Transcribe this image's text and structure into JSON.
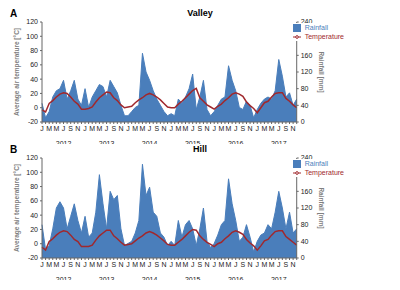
{
  "chart_data": [
    {
      "type": "area_line",
      "title": "Valley",
      "annotations": [
        "A"
      ],
      "ylabel": "Average air temperature [°C]",
      "y2label": "Rainfall [mm]",
      "categories": [
        "J",
        null,
        "M",
        null,
        "M",
        null,
        "J",
        null,
        "S",
        null,
        "N",
        null,
        "J",
        null,
        "M",
        null,
        "M",
        null,
        "J",
        null,
        "S",
        null,
        "N",
        null,
        "J",
        null,
        "M",
        null,
        "M",
        null,
        "J",
        null,
        "S",
        null,
        "N",
        null,
        "J",
        null,
        "M",
        null,
        "M",
        null,
        "J",
        null,
        "S",
        null,
        "N",
        null,
        "J",
        null,
        "M",
        null,
        "M",
        null,
        "J",
        null,
        "S",
        null,
        "N",
        null,
        "J",
        null,
        "M",
        null,
        "M",
        null,
        "J",
        null,
        "S",
        null,
        "N",
        null
      ],
      "x_groups": [
        "2012",
        "2013",
        "2014",
        "2015",
        "2016",
        "2017"
      ],
      "ylim": [
        -20,
        120
      ],
      "yticks": [
        -20,
        0,
        20,
        40,
        60,
        80,
        100,
        120
      ],
      "y2lim": [
        0,
        240
      ],
      "y2ticks": [
        0,
        40,
        80,
        120,
        160,
        200,
        240
      ],
      "grid": false,
      "legend": "upper right",
      "series": [
        {
          "name": "Rainfall",
          "type": "area",
          "axis": "y2",
          "color": "#4a7ebb",
          "values": [
            45,
            10,
            25,
            60,
            75,
            80,
            100,
            55,
            75,
            100,
            55,
            40,
            80,
            35,
            60,
            75,
            90,
            85,
            60,
            100,
            85,
            70,
            40,
            15,
            15,
            25,
            35,
            40,
            165,
            120,
            100,
            75,
            55,
            40,
            25,
            15,
            20,
            15,
            55,
            45,
            60,
            80,
            115,
            30,
            60,
            100,
            30,
            15,
            25,
            40,
            55,
            60,
            135,
            100,
            75,
            35,
            30,
            50,
            40,
            10,
            30,
            45,
            55,
            60,
            55,
            75,
            150,
            110,
            60,
            70,
            40,
            55
          ]
        },
        {
          "name": "Temperature",
          "type": "line",
          "color": "#a0282d",
          "values": [
            -3,
            -6,
            6,
            10,
            15,
            19,
            21,
            20,
            15,
            9,
            5,
            -2,
            -2,
            -1,
            1,
            8,
            14,
            18,
            22,
            21,
            14,
            10,
            4,
            0,
            1,
            2,
            7,
            11,
            14,
            18,
            20,
            18,
            15,
            11,
            6,
            1,
            0,
            0,
            5,
            9,
            14,
            19,
            24,
            27,
            14,
            9,
            4,
            1,
            -2,
            2,
            5,
            10,
            14,
            19,
            21,
            19,
            16,
            8,
            3,
            -1,
            -7,
            0,
            7,
            9,
            15,
            20,
            21,
            21,
            13,
            9,
            4,
            0
          ]
        }
      ]
    },
    {
      "type": "area_line",
      "title": "Hill",
      "annotations": [
        "B"
      ],
      "ylabel": "Average air temperature [°C]",
      "y2label": "Rainfall [mm]",
      "categories": [
        "J",
        null,
        "M",
        null,
        "M",
        null,
        "J",
        null,
        "S",
        null,
        "N",
        null,
        "J",
        null,
        "M",
        null,
        "M",
        null,
        "J",
        null,
        "S",
        null,
        "N",
        null,
        "J",
        null,
        "M",
        null,
        "M",
        null,
        "J",
        null,
        "S",
        null,
        "N",
        null,
        "J",
        null,
        "M",
        null,
        "M",
        null,
        "J",
        null,
        "S",
        null,
        "N",
        null,
        "J",
        null,
        "M",
        null,
        "M",
        null,
        "J",
        null,
        "S",
        null,
        "N",
        null,
        "J",
        null,
        "M",
        null,
        "M",
        null,
        "J",
        null,
        "S",
        null,
        "N",
        null
      ],
      "x_groups": [
        "2012",
        "2013",
        "2014",
        "2015",
        "2016",
        "2017"
      ],
      "ylim": [
        -20,
        120
      ],
      "yticks": [
        -20,
        0,
        20,
        40,
        60,
        80,
        100,
        120
      ],
      "y2lim": [
        0,
        240
      ],
      "y2ticks": [
        0,
        40,
        80,
        120,
        160,
        200,
        240
      ],
      "grid": false,
      "legend": "upper right",
      "series": [
        {
          "name": "Rainfall",
          "type": "area",
          "axis": "y2",
          "color": "#4a7ebb",
          "values": [
            80,
            20,
            30,
            70,
            120,
            135,
            120,
            70,
            100,
            130,
            90,
            60,
            100,
            50,
            60,
            110,
            200,
            130,
            70,
            160,
            140,
            150,
            70,
            30,
            35,
            40,
            60,
            90,
            225,
            150,
            170,
            110,
            100,
            60,
            50,
            30,
            40,
            30,
            90,
            50,
            80,
            90,
            70,
            30,
            70,
            120,
            40,
            25,
            35,
            55,
            80,
            90,
            190,
            130,
            90,
            40,
            50,
            80,
            50,
            15,
            40,
            55,
            60,
            80,
            70,
            110,
            160,
            120,
            70,
            110,
            60,
            70
          ]
        },
        {
          "name": "Temperature",
          "type": "line",
          "color": "#a0282d",
          "values": [
            -5,
            -9,
            3,
            7,
            12,
            16,
            18,
            17,
            12,
            6,
            3,
            -4,
            -4,
            -4,
            -2,
            5,
            11,
            15,
            19,
            19,
            11,
            7,
            2,
            -2,
            -1,
            0,
            4,
            8,
            11,
            15,
            17,
            15,
            12,
            8,
            4,
            -1,
            -2,
            -2,
            2,
            6,
            11,
            16,
            20,
            19,
            11,
            6,
            2,
            -1,
            -4,
            0,
            2,
            7,
            11,
            16,
            18,
            16,
            13,
            6,
            1,
            -3,
            -9,
            -3,
            4,
            6,
            12,
            17,
            18,
            18,
            10,
            6,
            2,
            -2
          ]
        }
      ]
    }
  ]
}
